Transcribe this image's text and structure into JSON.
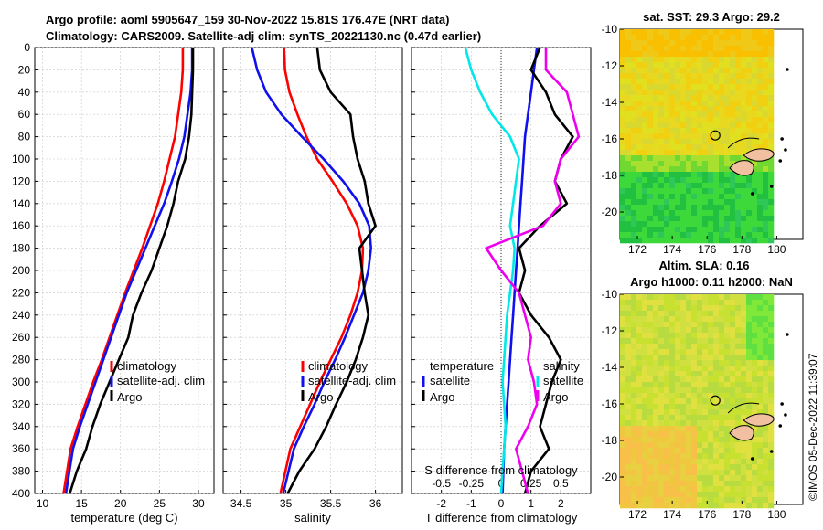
{
  "header": {
    "line1": "Argo profile: aoml 5905647_159 30-Nov-2022 15.81S 176.47E (NRT data)",
    "line2": "Climatology: CARS2009. Satellite-adj clim: synTS_20221130.nc (0.47d earlier)"
  },
  "stamp": "©IMOS 05-Dec-2022 11:39:07",
  "colors": {
    "climatology": "#ff0000",
    "satellite": "#1010ee",
    "argo": "#000000",
    "salinity_diff": "#ee00ee",
    "temp_diff": "#00e8e8"
  },
  "chart_data": [
    {
      "type": "line",
      "title": "",
      "xlabel": "temperature (deg C)",
      "ylabel": "",
      "xlim": [
        9,
        32
      ],
      "ylim": [
        400,
        0
      ],
      "y_inverted": true,
      "xticks": [
        10,
        15,
        20,
        25,
        30
      ],
      "yticks": [
        0,
        20,
        40,
        60,
        80,
        100,
        120,
        140,
        160,
        180,
        200,
        220,
        240,
        260,
        280,
        300,
        320,
        340,
        360,
        380,
        400
      ],
      "legend": [
        "climatology",
        "satellite-adj. clim",
        "Argo"
      ],
      "series": [
        {
          "name": "climatology",
          "color": "#ff0000",
          "x": [
            28.0,
            28.0,
            27.8,
            27.4,
            27.0,
            26.3,
            25.6,
            24.8,
            23.8,
            22.8,
            21.7,
            20.6,
            19.6,
            18.6,
            17.6,
            16.5,
            15.5,
            14.5,
            13.6,
            12.7
          ],
          "y": [
            0,
            20,
            40,
            60,
            80,
            100,
            120,
            140,
            160,
            180,
            200,
            220,
            240,
            260,
            280,
            300,
            320,
            340,
            360,
            400
          ]
        },
        {
          "name": "satellite-adj. clim",
          "color": "#1010ee",
          "x": [
            29.2,
            29.2,
            29.0,
            28.6,
            28.2,
            27.5,
            26.6,
            25.6,
            24.4,
            23.2,
            22.0,
            20.8,
            19.8,
            18.8,
            17.8,
            16.8,
            15.8,
            14.8,
            13.9,
            13.0
          ],
          "y": [
            0,
            20,
            40,
            60,
            80,
            100,
            120,
            140,
            160,
            180,
            200,
            220,
            240,
            260,
            280,
            300,
            320,
            340,
            360,
            400
          ]
        },
        {
          "name": "Argo",
          "color": "#000000",
          "x": [
            29.3,
            29.3,
            29.2,
            29.1,
            28.8,
            28.3,
            27.4,
            26.8,
            26.0,
            25.0,
            24.0,
            22.7,
            21.6,
            21.0,
            19.8,
            18.6,
            17.4,
            16.4,
            15.6,
            14.4,
            13.5
          ],
          "y": [
            0,
            20,
            40,
            60,
            80,
            100,
            120,
            140,
            160,
            180,
            200,
            220,
            240,
            260,
            280,
            300,
            320,
            340,
            360,
            380,
            400
          ]
        }
      ]
    },
    {
      "type": "line",
      "xlabel": "salinity",
      "xlim": [
        34.3,
        36.3
      ],
      "ylim": [
        400,
        0
      ],
      "y_inverted": true,
      "xticks": [
        34.5,
        35,
        35.5,
        36
      ],
      "legend": [
        "climatology",
        "satellite-adj. clim",
        "Argo"
      ],
      "series": [
        {
          "name": "climatology",
          "color": "#ff0000",
          "x": [
            34.98,
            34.99,
            35.04,
            35.13,
            35.23,
            35.35,
            35.52,
            35.68,
            35.8,
            35.86,
            35.85,
            35.8,
            35.72,
            35.62,
            35.5,
            35.38,
            35.27,
            35.16,
            35.05,
            34.94
          ],
          "y": [
            0,
            20,
            40,
            60,
            80,
            100,
            120,
            140,
            160,
            180,
            200,
            220,
            240,
            260,
            280,
            300,
            320,
            340,
            360,
            400
          ]
        },
        {
          "name": "satellite-adj. clim",
          "color": "#1010ee",
          "x": [
            34.62,
            34.68,
            34.78,
            34.95,
            35.18,
            35.42,
            35.64,
            35.82,
            35.93,
            35.95,
            35.92,
            35.86,
            35.76,
            35.66,
            35.55,
            35.43,
            35.32,
            35.2,
            35.09,
            34.97
          ],
          "y": [
            0,
            20,
            40,
            60,
            80,
            100,
            120,
            140,
            160,
            180,
            200,
            220,
            240,
            260,
            280,
            300,
            320,
            340,
            360,
            400
          ]
        },
        {
          "name": "Argo",
          "color": "#000000",
          "x": [
            35.35,
            35.38,
            35.5,
            35.72,
            35.75,
            35.8,
            35.88,
            35.92,
            36.0,
            35.82,
            35.85,
            35.88,
            35.92,
            35.86,
            35.78,
            35.68,
            35.56,
            35.45,
            35.32,
            35.15,
            35.02
          ],
          "y": [
            0,
            20,
            40,
            60,
            80,
            100,
            120,
            140,
            160,
            180,
            200,
            220,
            240,
            260,
            280,
            300,
            320,
            340,
            360,
            380,
            400
          ]
        }
      ]
    },
    {
      "type": "line",
      "xlabel": "T difference from climatology",
      "xlabel_top": "S difference from climatology",
      "xlim": [
        -3,
        3
      ],
      "ylim": [
        400,
        0
      ],
      "y_inverted": true,
      "xticks": [
        -2,
        -1,
        0,
        1,
        2
      ],
      "xticks_top": [
        "-0.5",
        "-0.25",
        "0",
        "0.25",
        "0.5"
      ],
      "legend_temperature": [
        "temperature",
        "satellite",
        "Argo"
      ],
      "legend_salinity": [
        "salinity",
        "satellite",
        "Argo"
      ],
      "series": [
        {
          "name": "temperature satellite",
          "color": "#1010ee",
          "x": [
            1.2,
            1.1,
            1.0,
            0.9,
            0.8,
            0.75,
            0.7,
            0.65,
            0.6,
            0.55,
            0.5,
            0.45,
            0.4,
            0.35,
            0.3,
            0.25,
            0.2,
            0.15,
            0.1,
            0.05
          ],
          "y": [
            0,
            20,
            40,
            60,
            80,
            100,
            120,
            140,
            160,
            180,
            200,
            220,
            240,
            260,
            280,
            300,
            320,
            340,
            360,
            400
          ]
        },
        {
          "name": "temperature Argo",
          "color": "#000000",
          "x": [
            1.3,
            1.0,
            1.5,
            1.8,
            2.4,
            2.0,
            1.8,
            2.2,
            1.3,
            0.6,
            0.8,
            0.6,
            1.0,
            1.6,
            2.0,
            1.7,
            1.5,
            1.3,
            1.6,
            1.0,
            0.8
          ],
          "y": [
            0,
            20,
            40,
            60,
            80,
            100,
            120,
            140,
            160,
            180,
            200,
            220,
            240,
            260,
            280,
            300,
            320,
            340,
            360,
            380,
            400
          ]
        },
        {
          "name": "salinity satellite",
          "color": "#00e8e8",
          "x": [
            -1.2,
            -1.0,
            -0.7,
            -0.3,
            0.3,
            0.6,
            0.5,
            0.4,
            0.3,
            0.45,
            0.4,
            0.3,
            0.2,
            0.15,
            0.1,
            0.05,
            0.1,
            0.15,
            0.1,
            0.05,
            0.0
          ],
          "y": [
            0,
            20,
            40,
            60,
            80,
            100,
            120,
            140,
            160,
            180,
            200,
            220,
            240,
            260,
            280,
            300,
            320,
            340,
            360,
            380,
            400
          ]
        },
        {
          "name": "salinity Argo",
          "color": "#ee00ee",
          "x": [
            1.5,
            1.5,
            2.2,
            2.4,
            2.6,
            2.0,
            1.8,
            2.0,
            1.4,
            -0.5,
            0.0,
            0.6,
            0.8,
            1.0,
            0.9,
            1.1,
            1.2,
            0.9,
            0.5,
            0.7,
            0.9
          ],
          "y": [
            0,
            20,
            40,
            60,
            80,
            100,
            120,
            140,
            160,
            180,
            200,
            220,
            240,
            260,
            280,
            300,
            320,
            340,
            360,
            380,
            400
          ]
        }
      ]
    },
    {
      "type": "heatmap",
      "title": "sat. SST: 29.3 Argo: 29.2",
      "xlim": [
        171,
        181.5
      ],
      "ylim": [
        -21.5,
        -10
      ],
      "xticks": [
        172,
        174,
        176,
        178,
        180
      ],
      "yticks": [
        -10,
        -12,
        -14,
        -16,
        -18,
        -20
      ],
      "argo_position": {
        "lon": 176.47,
        "lat": -15.81
      }
    },
    {
      "type": "heatmap",
      "title_line1": "Altim. SLA: 0.16",
      "title_line2": "Argo h1000: 0.11 h2000: NaN",
      "xlim": [
        171,
        181.5
      ],
      "ylim": [
        -21.5,
        -10
      ],
      "xticks": [
        172,
        174,
        176,
        178,
        180
      ],
      "yticks": [
        -10,
        -12,
        -14,
        -16,
        -18,
        -20
      ],
      "argo_position": {
        "lon": 176.47,
        "lat": -15.81
      }
    }
  ]
}
